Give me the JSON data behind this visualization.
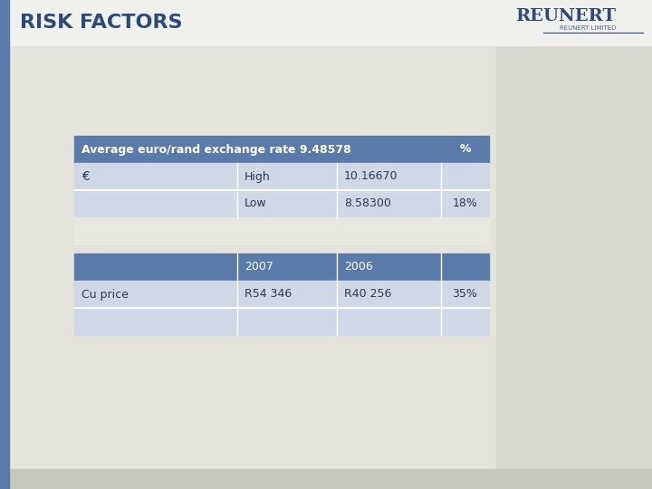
{
  "title": "RISK FACTORS",
  "bg_color": "#e8e8e0",
  "header_bg": "#e8e8e0",
  "title_color": "#2b4a7a",
  "table1_header_row": [
    "Average euro/rand exchange rate 9.48578",
    "",
    "%"
  ],
  "table1_rows": [
    [
      "€",
      "High",
      "10.16670",
      ""
    ],
    [
      "",
      "Low",
      "8.58300",
      "18%"
    ]
  ],
  "table2_header_row": [
    "",
    "2007",
    "2006",
    ""
  ],
  "table2_rows": [
    [
      "Cu price",
      "R54 346",
      "R40 256",
      "35%"
    ],
    [
      "",
      "",
      "",
      ""
    ]
  ],
  "dark_header_color": "#5a7aaa",
  "light_row_color": "#d0d8e8",
  "white_row_color": "#f0f0ec",
  "text_color_dark": "#2b3a50",
  "text_color_white": "#ffffff",
  "logo_text": "REUNERT",
  "logo_sub": "REUNERT LIMITED",
  "slide_bg": "#e4e4dc",
  "bottom_bar_color": "#c8c8c0",
  "left_bar_color": "#5a7aaa",
  "right_panel_color": "#d8d8d0"
}
